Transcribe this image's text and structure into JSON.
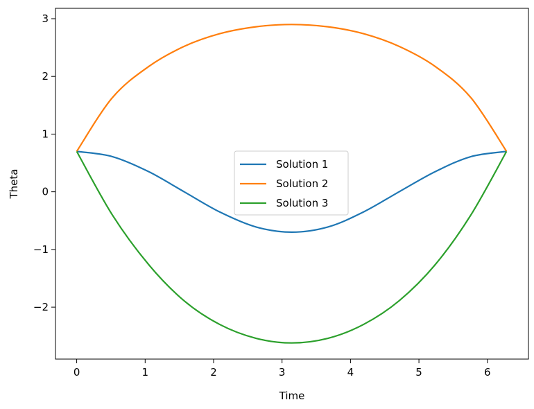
{
  "chart_data": {
    "type": "line",
    "title": "",
    "xlabel": "Time",
    "ylabel": "Theta",
    "xlim": [
      -0.31,
      6.6
    ],
    "ylim": [
      -2.9,
      3.18
    ],
    "xticks": [
      0,
      1,
      2,
      3,
      4,
      5,
      6
    ],
    "xtick_labels": [
      "0",
      "1",
      "2",
      "3",
      "4",
      "5",
      "6"
    ],
    "yticks": [
      -2,
      -1,
      0,
      1,
      2,
      3
    ],
    "ytick_labels": [
      "−2",
      "−1",
      "0",
      "1",
      "2",
      "3"
    ],
    "grid": false,
    "legend_position": "center",
    "series": [
      {
        "name": "Solution 1",
        "color": "#1f77b4",
        "x": [
          0,
          0.52,
          1.05,
          1.57,
          2.09,
          2.62,
          3.14,
          3.67,
          4.19,
          4.71,
          5.24,
          5.76,
          6.28
        ],
        "y": [
          0.7,
          0.61,
          0.35,
          0.0,
          -0.35,
          -0.61,
          -0.7,
          -0.61,
          -0.35,
          0.0,
          0.35,
          0.61,
          0.7
        ]
      },
      {
        "name": "Solution 2",
        "color": "#ff7f0e",
        "x": [
          0,
          0.52,
          1.05,
          1.57,
          2.09,
          2.62,
          3.14,
          3.67,
          4.19,
          4.71,
          5.24,
          5.76,
          6.28
        ],
        "y": [
          0.7,
          1.63,
          2.17,
          2.52,
          2.74,
          2.86,
          2.9,
          2.86,
          2.74,
          2.52,
          2.17,
          1.63,
          0.7
        ]
      },
      {
        "name": "Solution 3",
        "color": "#2ca02c",
        "x": [
          0,
          0.52,
          1.05,
          1.57,
          2.09,
          2.62,
          3.14,
          3.67,
          4.19,
          4.71,
          5.24,
          5.76,
          6.28
        ],
        "y": [
          0.7,
          -0.4,
          -1.26,
          -1.89,
          -2.3,
          -2.54,
          -2.62,
          -2.54,
          -2.3,
          -1.89,
          -1.26,
          -0.4,
          0.7
        ]
      }
    ]
  }
}
